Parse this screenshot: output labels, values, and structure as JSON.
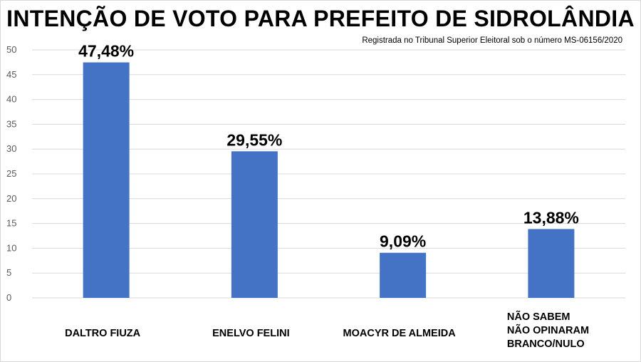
{
  "chart_data": {
    "type": "bar",
    "title": "INTENÇÃO DE VOTO PARA PREFEITO DE SIDROLÂNDIA",
    "subtitle": "Registrada no Tribunal Superior Eleitoral sob o número MS-06156/2020",
    "categories": [
      [
        "DALTRO FIUZA"
      ],
      [
        "ENELVO FELINI"
      ],
      [
        "MOACYR DE ALMEIDA"
      ],
      [
        "NÃO SABEM",
        "NÃO OPINARAM",
        "BRANCO/NULO"
      ]
    ],
    "values": [
      47.48,
      29.55,
      9.09,
      13.88
    ],
    "data_labels": [
      "47,48%",
      "29,55%",
      "9,09%",
      "13,88%"
    ],
    "yticks": [
      "0",
      "5",
      "10",
      "15",
      "20",
      "25",
      "30",
      "35",
      "40",
      "45",
      "50"
    ],
    "ylim": [
      0,
      50
    ],
    "grid": true,
    "bar_color": "#4472C4",
    "grid_color": "#d9d9d9"
  }
}
